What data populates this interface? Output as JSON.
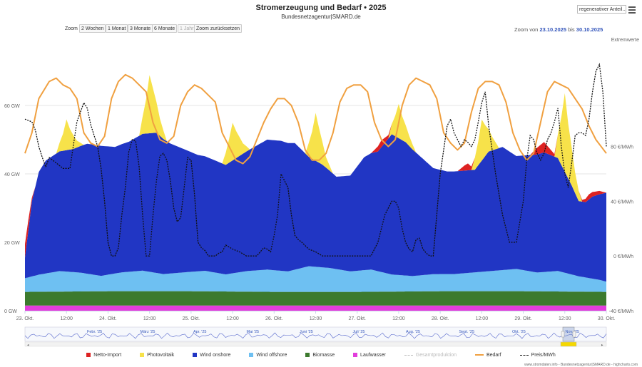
{
  "header": {
    "title": "Stromerzeugung und Bedarf  •  2025",
    "subtitle": "Bundesnetzagentur|SMARD.de",
    "dropdown_label": "regenerativer Anteil..."
  },
  "zoom": {
    "label": "Zoom",
    "buttons": [
      "2 Wochen",
      "1 Monat",
      "3 Monate",
      "6 Monate",
      "1 Jahr",
      "Zoom zurücksetzen"
    ],
    "range_from_label": "Zoom von",
    "from": "23.10.2025",
    "range_to_label": "bis",
    "to": "30.10.2025"
  },
  "credits": "www.stromdaten.info - Bundesnetzagentur|SMARD.de - highcharts.com",
  "navigator": {
    "months": [
      "Febr. '25",
      "März '25",
      "Apr. '25",
      "Mai '25",
      "Juni '25",
      "Juli '25",
      "Aug. '25",
      "Sept. '25",
      "Okt. '25",
      "Nov. '25"
    ]
  },
  "colors": {
    "netto_import": "#dd2222",
    "photovoltaik": "#f7e24a",
    "wind_onshore": "#2136c4",
    "wind_offshore": "#6ec0f2",
    "biomasse": "#3c7a2e",
    "laufwasser": "#e23ddc",
    "bedarf": "#f0a040",
    "preis": "#111111",
    "gesamt": "#bbbbbb"
  },
  "chart_data": {
    "type": "area",
    "title": "Stromerzeugung und Bedarf  •  2025",
    "x_start_hour": 0,
    "x_end_hour": 168,
    "x_tick_labels": [
      "23. Okt.",
      "12:00",
      "24. Okt.",
      "12:00",
      "25. Okt.",
      "12:00",
      "26. Okt.",
      "12:00",
      "27. Okt.",
      "12:00",
      "28. Okt.",
      "12:00",
      "29. Okt.",
      "12:00",
      "30. Okt."
    ],
    "y_left": {
      "unit": "GW",
      "range": [
        0,
        80
      ],
      "ticks": [
        "0 GW",
        "20 GW",
        "40 GW",
        "60 GW"
      ],
      "tick_values": [
        0,
        20,
        40,
        60
      ]
    },
    "y_right": {
      "unit": "€/MWh",
      "range": [
        -40,
        160
      ],
      "label_top": "Extremwerte",
      "ticks": [
        "-40 €/MWh",
        "0 €/MWh",
        "40 €/MWh",
        "80 €/MWh"
      ],
      "tick_values": [
        -40,
        0,
        40,
        80
      ]
    },
    "series": [
      {
        "name": "Laufwasser",
        "key": "laufwasser",
        "x": [
          0,
          24,
          48,
          72,
          96,
          120,
          144,
          168
        ],
        "values": [
          1.5,
          1.5,
          1.5,
          1.5,
          1.5,
          1.5,
          1.5,
          1.5
        ]
      },
      {
        "name": "Biomasse",
        "key": "biomasse",
        "x": [
          0,
          24,
          48,
          72,
          96,
          120,
          144,
          168
        ],
        "values": [
          4,
          4.2,
          4.2,
          4.0,
          4.0,
          4.2,
          4.2,
          4.0
        ]
      },
      {
        "name": "Wind offshore",
        "key": "wind_offshore",
        "x": [
          0,
          4,
          10,
          16,
          22,
          28,
          34,
          40,
          46,
          52,
          58,
          64,
          70,
          76,
          82,
          88,
          94,
          100,
          106,
          112,
          118,
          124,
          130,
          136,
          142,
          148,
          154,
          160,
          166,
          168
        ],
        "values": [
          4,
          5,
          6,
          5.5,
          4.5,
          5.5,
          6,
          5,
          5.5,
          6,
          5,
          6,
          6.5,
          6,
          7.5,
          7,
          6,
          6.5,
          5,
          4.5,
          5,
          5,
          5.5,
          6,
          6.5,
          5.5,
          6,
          4.5,
          3.5,
          3
        ]
      },
      {
        "name": "Wind onshore",
        "key": "wind_onshore",
        "x": [
          0,
          2,
          4,
          6,
          8,
          10,
          14,
          18,
          22,
          26,
          30,
          34,
          38,
          42,
          46,
          50,
          54,
          58,
          62,
          66,
          70,
          74,
          78,
          82,
          86,
          90,
          94,
          98,
          102,
          106,
          110,
          114,
          118,
          122,
          126,
          130,
          134,
          138,
          142,
          146,
          150,
          154,
          158,
          160,
          162,
          164,
          168
        ],
        "values": [
          6,
          22,
          30,
          33,
          34,
          35,
          36,
          38,
          38,
          37,
          38,
          40,
          41,
          38,
          36,
          34,
          33,
          32,
          34,
          36,
          38,
          38,
          37,
          32,
          30,
          27,
          28,
          33,
          35,
          41,
          39,
          35,
          31,
          30,
          30,
          30,
          35,
          36,
          33,
          34,
          35,
          33,
          26,
          22,
          22,
          24,
          26
        ]
      },
      {
        "name": "Photovoltaik",
        "key": "photovoltaik",
        "x": [
          0,
          9,
          11,
          12,
          13,
          15,
          17,
          33,
          35,
          36,
          37,
          39,
          41,
          57,
          59,
          60,
          61,
          63,
          65,
          81,
          83,
          84,
          85,
          87,
          89,
          105,
          107,
          108,
          109,
          111,
          113,
          129,
          131,
          132,
          133,
          135,
          137,
          153,
          155,
          156,
          157,
          159,
          161,
          168
        ],
        "values": [
          0,
          0,
          5,
          9,
          6,
          2,
          0,
          0,
          10,
          17,
          13,
          5,
          0,
          0,
          7,
          11,
          8,
          3,
          0,
          0,
          8,
          14,
          10,
          3,
          0,
          0,
          6,
          10,
          7,
          3,
          0,
          0,
          7,
          12,
          9,
          4,
          0,
          0,
          14,
          23,
          16,
          6,
          0,
          0
        ]
      },
      {
        "name": "Netto-Import",
        "key": "netto_import",
        "x": [
          0,
          1,
          2,
          3,
          100,
          102,
          103,
          105,
          106,
          125,
          127,
          128,
          130,
          146,
          148,
          150,
          152,
          154,
          160,
          163,
          166,
          168
        ],
        "values": [
          4,
          3,
          1,
          0,
          0,
          1.5,
          2,
          1,
          0,
          0,
          1.5,
          2,
          0,
          0,
          2,
          3,
          1.5,
          0,
          0,
          1.5,
          1,
          0
        ]
      }
    ],
    "bedarf": {
      "name": "Bedarf",
      "key": "bedarf",
      "x": [
        0,
        2,
        4,
        7,
        9,
        11,
        13,
        15,
        17,
        19,
        21,
        23,
        25,
        27,
        29,
        31,
        33,
        35,
        37,
        39,
        41,
        43,
        45,
        47,
        49,
        51,
        53,
        55,
        57,
        59,
        61,
        63,
        65,
        67,
        69,
        71,
        73,
        75,
        77,
        79,
        81,
        83,
        85,
        87,
        89,
        91,
        93,
        95,
        97,
        99,
        101,
        103,
        105,
        107,
        109,
        111,
        113,
        115,
        117,
        119,
        121,
        123,
        125,
        127,
        129,
        131,
        133,
        135,
        137,
        139,
        141,
        143,
        145,
        147,
        149,
        151,
        153,
        155,
        157,
        159,
        161,
        163,
        165,
        168
      ],
      "values": [
        46,
        52,
        62,
        67,
        68,
        66,
        65,
        62,
        52,
        49,
        48,
        51,
        62,
        67,
        69,
        68,
        66,
        64,
        55,
        50,
        49,
        51,
        60,
        64,
        66,
        65,
        63,
        61,
        52,
        48,
        44,
        43,
        45,
        50,
        55,
        59,
        62,
        62,
        60,
        55,
        47,
        44,
        44,
        46,
        52,
        61,
        65,
        66,
        66,
        64,
        55,
        50,
        48,
        50,
        60,
        66,
        68,
        67,
        66,
        62,
        52,
        49,
        47,
        49,
        58,
        65,
        67,
        67,
        66,
        61,
        52,
        47,
        44,
        46,
        55,
        64,
        67,
        66,
        65,
        62,
        59,
        54,
        50,
        46
      ]
    },
    "preis": {
      "name": "Preis/MWh",
      "key": "preis",
      "x": [
        0,
        2,
        3,
        4,
        5,
        6,
        7,
        9,
        11,
        13,
        15,
        17,
        18,
        19,
        20,
        21,
        22,
        23,
        24,
        25,
        26,
        27,
        28,
        29,
        30,
        31,
        32,
        33,
        34,
        35,
        36,
        37,
        38,
        39,
        40,
        41,
        42,
        43,
        44,
        45,
        46,
        47,
        48,
        49,
        50,
        51,
        52,
        53,
        54,
        55,
        56,
        57,
        58,
        60,
        62,
        64,
        66,
        67,
        68,
        69,
        70,
        71,
        72,
        73,
        74,
        76,
        77,
        78,
        79,
        80,
        82,
        84,
        86,
        88,
        90,
        92,
        94,
        96,
        98,
        100,
        102,
        104,
        106,
        107,
        108,
        109,
        110,
        111,
        112,
        113,
        114,
        115,
        116,
        117,
        118,
        120,
        122,
        123,
        124,
        125,
        126,
        127,
        128,
        129,
        130,
        131,
        132,
        133,
        134,
        136,
        138,
        140,
        142,
        144,
        145,
        146,
        147,
        148,
        149,
        150,
        151,
        152,
        153,
        154,
        155,
        156,
        157,
        158,
        159,
        160,
        161,
        162,
        163,
        164,
        165,
        166,
        167,
        168
      ],
      "values": [
        100,
        98,
        92,
        80,
        72,
        65,
        72,
        68,
        64,
        64,
        98,
        112,
        108,
        96,
        88,
        80,
        64,
        40,
        10,
        0,
        0,
        6,
        30,
        50,
        76,
        85,
        84,
        65,
        30,
        0,
        0,
        30,
        55,
        73,
        75,
        70,
        55,
        35,
        25,
        28,
        50,
        72,
        70,
        45,
        10,
        6,
        4,
        0,
        0,
        0,
        2,
        3,
        8,
        5,
        3,
        0,
        0,
        0,
        3,
        6,
        5,
        3,
        15,
        30,
        60,
        50,
        30,
        15,
        12,
        10,
        5,
        3,
        0,
        0,
        0,
        0,
        0,
        0,
        0,
        0,
        10,
        30,
        40,
        40,
        35,
        20,
        10,
        5,
        3,
        12,
        13,
        5,
        2,
        0,
        0,
        60,
        95,
        100,
        90,
        85,
        80,
        85,
        83,
        80,
        85,
        98,
        112,
        120,
        95,
        60,
        30,
        10,
        10,
        40,
        70,
        88,
        85,
        75,
        70,
        75,
        85,
        90,
        98,
        108,
        80,
        60,
        50,
        68,
        88,
        90,
        90,
        88,
        100,
        120,
        135,
        140,
        120,
        80
      ]
    }
  },
  "legend": [
    "Netto-Import",
    "Photovoltaik",
    "Wind onshore",
    "Wind offshore",
    "Biomasse",
    "Laufwasser",
    "Gesamtproduktion",
    "Bedarf",
    "Preis/MWh"
  ]
}
